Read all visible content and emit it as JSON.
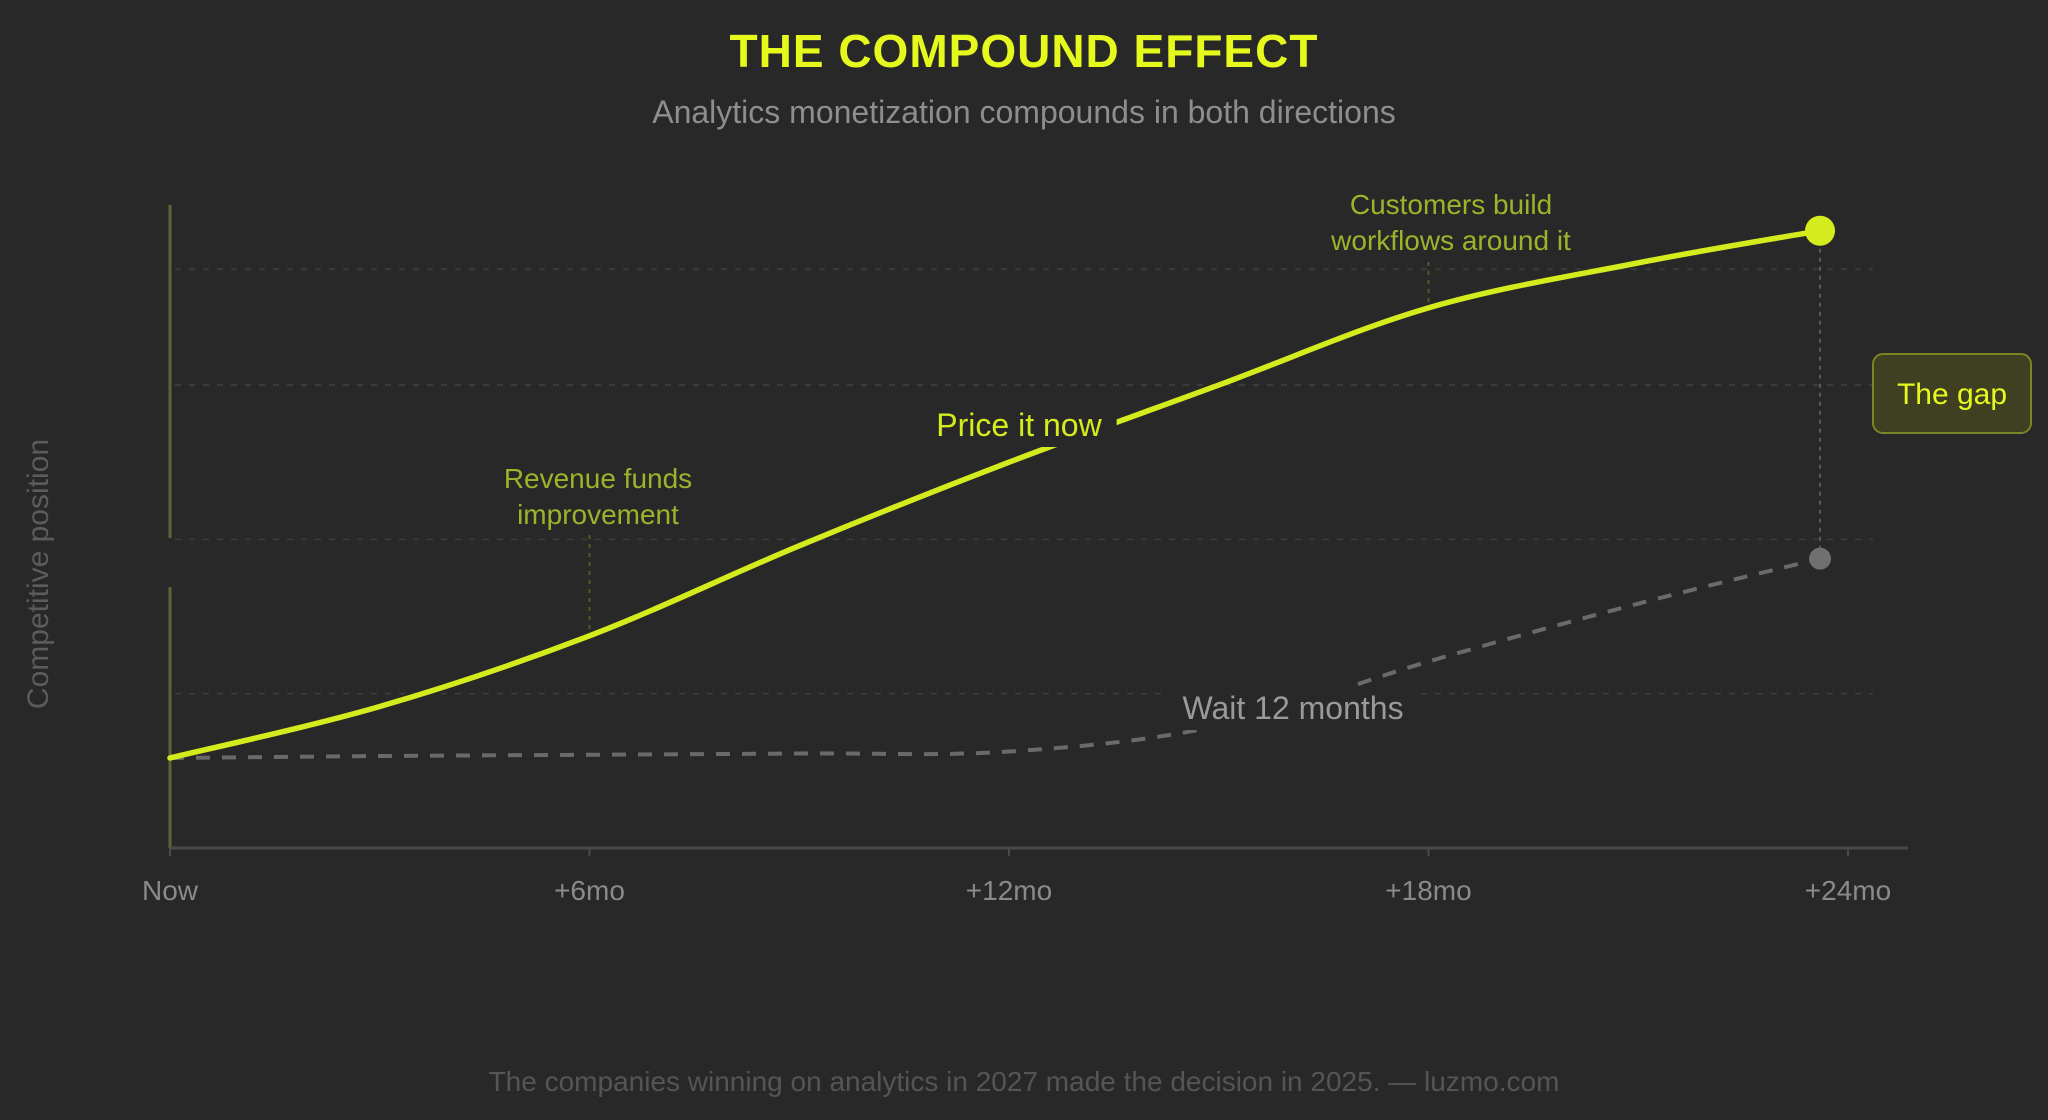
{
  "header": {
    "title": "THE COMPOUND EFFECT",
    "subtitle": "Analytics monetization compounds in both directions"
  },
  "footer": {
    "text": "The companies winning on analytics in 2027 made the decision in 2025. — luzmo.com"
  },
  "colors": {
    "background": "#282828",
    "accent": "#e6f91d",
    "line_primary": "#d4ec1d",
    "line_secondary": "#6a6a6a",
    "annotation": "#9fb22a",
    "gap_box_fill": "#3f4022",
    "gap_box_border": "#7a8526"
  },
  "chart_data": {
    "type": "line",
    "title": "THE COMPOUND EFFECT",
    "subtitle": "Analytics monetization compounds in both directions",
    "xlabel": "",
    "ylabel": "Competitive position",
    "x_ticks": [
      "Now",
      "+6mo",
      "+12mo",
      "+18mo",
      "+24mo"
    ],
    "x_values": [
      0,
      6,
      12,
      18,
      24
    ],
    "xlim": [
      0,
      24
    ],
    "ylim": [
      0,
      100
    ],
    "grid": true,
    "series": [
      {
        "name": "Price it now",
        "style": "solid",
        "x": [
          0,
          3,
          6,
          9,
          12,
          15,
          18,
          21,
          23.6
        ],
        "y": [
          14,
          22,
          33,
          47,
          60,
          72,
          84,
          91,
          96
        ]
      },
      {
        "name": "Wait 12 months",
        "style": "dashed",
        "x": [
          0,
          3,
          6,
          9,
          12,
          15,
          18,
          21,
          23.6
        ],
        "y": [
          14,
          14.3,
          14.5,
          14.7,
          15,
          19,
          29,
          38,
          45
        ]
      }
    ],
    "annotations": [
      {
        "text_lines": [
          "Revenue funds",
          "improvement"
        ],
        "x": 6,
        "y": 33
      },
      {
        "text_lines": [
          "Customers build",
          "workflows around it"
        ],
        "x": 18,
        "y": 84
      }
    ],
    "gap_label": "The gap"
  }
}
